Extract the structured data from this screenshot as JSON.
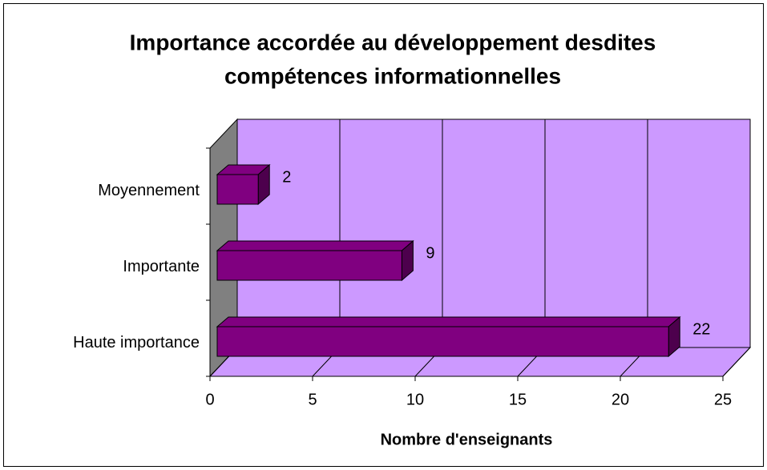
{
  "chart_data": {
    "type": "bar3d_horizontal",
    "title": [
      "Importance accordée au développement desdites",
      "compétences informationnelles"
    ],
    "x_label": "Nombre d'enseignants",
    "categories": [
      "Haute importance",
      "Importante",
      "Moyennement"
    ],
    "values": [
      22,
      9,
      2
    ],
    "color": "#800080",
    "wall_color": "#cc99ff",
    "side_wall_color": "#808080",
    "xlim": [
      0,
      25
    ],
    "xticks": [
      0,
      5,
      10,
      15,
      20,
      25
    ],
    "grid": true
  }
}
